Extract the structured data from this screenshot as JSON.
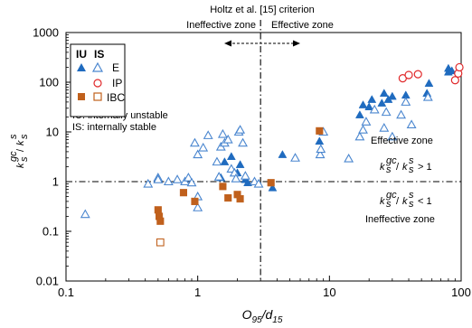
{
  "chart_data": {
    "type": "scatter",
    "xscale": "log",
    "yscale": "log",
    "xlim": [
      0.1,
      100
    ],
    "ylim": [
      0.01,
      1000
    ],
    "grid": false,
    "xlabel_main": "O",
    "xlabel_sub1": "95",
    "xlabel_mid": "/d",
    "xlabel_sub2": "15",
    "ylabel": "k_s^gc / k_s",
    "x_ticks": [
      0.1,
      1,
      10,
      100
    ],
    "x_tick_labels": [
      "0.1",
      "1",
      "10",
      "100"
    ],
    "y_ticks": [
      0.01,
      0.1,
      1,
      10,
      100,
      1000
    ],
    "y_tick_labels": [
      "0.01",
      "0.1",
      "1",
      "10",
      "100",
      "1000"
    ],
    "criterion_x": 3,
    "threshold_y": 1,
    "annotations": {
      "criterion_title": "Holtz et al. [15] criterion",
      "ineffective_zone_top": "Ineffective zone",
      "effective_zone_top": "Effective zone",
      "effective_zone": "Effective zone",
      "ineffective_zone": "Ineffective zone",
      "ineq_gt": "> 1",
      "ineq_lt": "< 1",
      "iu_note": "IU: internally unstable",
      "is_note": "IS: internally stable"
    },
    "legend": {
      "placement": "top-left",
      "header_iu": "IU",
      "header_is": "IS",
      "entries": [
        "E",
        "IP",
        "IBC"
      ]
    },
    "series": [
      {
        "name": "E",
        "group": "IU",
        "marker": "filled-triangle",
        "color": "#1f6bbf",
        "points": [
          [
            1.5,
            1.2
          ],
          [
            1.6,
            2.5
          ],
          [
            1.8,
            3.2
          ],
          [
            2,
            1.5
          ],
          [
            2.1,
            2.2
          ],
          [
            2.3,
            1.1
          ],
          [
            2.4,
            0.95
          ],
          [
            3.7,
            0.75
          ],
          [
            4.4,
            3.5
          ],
          [
            8.4,
            6.5
          ],
          [
            17,
            22
          ],
          [
            18,
            35
          ],
          [
            20,
            32
          ],
          [
            21,
            45
          ],
          [
            25,
            38
          ],
          [
            26,
            60
          ],
          [
            28,
            45
          ],
          [
            30,
            52
          ],
          [
            38,
            55
          ],
          [
            55,
            60
          ],
          [
            57,
            95
          ],
          [
            80,
            160
          ],
          [
            80,
            190
          ],
          [
            85,
            170
          ]
        ]
      },
      {
        "name": "E",
        "group": "IS",
        "marker": "open-triangle",
        "color": "#4a86cf",
        "points": [
          [
            0.14,
            0.22
          ],
          [
            0.42,
            0.9
          ],
          [
            0.5,
            1.2
          ],
          [
            0.5,
            1.1
          ],
          [
            0.6,
            1.0
          ],
          [
            0.7,
            1.1
          ],
          [
            0.8,
            1.0
          ],
          [
            0.85,
            1.2
          ],
          [
            0.9,
            0.95
          ],
          [
            0.95,
            6
          ],
          [
            1.0,
            0.5
          ],
          [
            1.0,
            0.3
          ],
          [
            1.0,
            3.5
          ],
          [
            1.1,
            4.8
          ],
          [
            1.2,
            8.5
          ],
          [
            1.4,
            2.5
          ],
          [
            1.45,
            1.25
          ],
          [
            1.5,
            5
          ],
          [
            1.55,
            9
          ],
          [
            1.6,
            6
          ],
          [
            1.7,
            7
          ],
          [
            1.8,
            1.8
          ],
          [
            1.9,
            1.5
          ],
          [
            1.95,
            1.15
          ],
          [
            2.05,
            10
          ],
          [
            2.1,
            11
          ],
          [
            2.2,
            6
          ],
          [
            2.3,
            1.3
          ],
          [
            2.7,
            1.0
          ],
          [
            2.9,
            0.9
          ],
          [
            5.5,
            3
          ],
          [
            8.5,
            3.5
          ],
          [
            8.6,
            4.5
          ],
          [
            9,
            10
          ],
          [
            14,
            2.9
          ],
          [
            17,
            8
          ],
          [
            18,
            11
          ],
          [
            19,
            16
          ],
          [
            22,
            28
          ],
          [
            26,
            12
          ],
          [
            27,
            25
          ],
          [
            30,
            8
          ],
          [
            35,
            22
          ],
          [
            38,
            40
          ],
          [
            42,
            14
          ],
          [
            56,
            50
          ]
        ]
      },
      {
        "name": "IP",
        "group": "IS",
        "marker": "open-circle",
        "color": "#e0282a",
        "points": [
          [
            36,
            120
          ],
          [
            40,
            140
          ],
          [
            47,
            145
          ],
          [
            90,
            110
          ],
          [
            95,
            150
          ],
          [
            97,
            200
          ]
        ]
      },
      {
        "name": "IBC",
        "group": "IU",
        "marker": "filled-square",
        "color": "#c0601c",
        "points": [
          [
            0.5,
            0.27
          ],
          [
            0.51,
            0.2
          ],
          [
            0.52,
            0.16
          ],
          [
            0.78,
            0.6
          ],
          [
            0.95,
            0.4
          ],
          [
            1.55,
            0.8
          ],
          [
            1.7,
            0.47
          ],
          [
            2.0,
            0.55
          ],
          [
            2.1,
            0.45
          ],
          [
            3.6,
            0.95
          ],
          [
            8.4,
            10.5
          ]
        ]
      },
      {
        "name": "IBC",
        "group": "IS",
        "marker": "open-square",
        "color": "#c0601c",
        "points": [
          [
            0.52,
            0.06
          ]
        ]
      }
    ]
  }
}
